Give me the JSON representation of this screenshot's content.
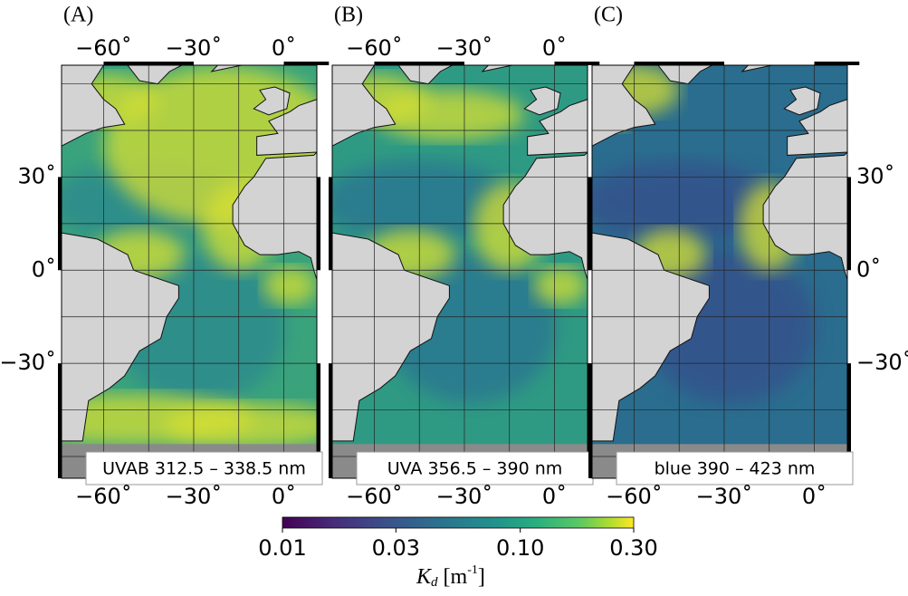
{
  "panels": [
    {
      "label": "(A)",
      "band": "UVAB 312.5 – 338.5 nm"
    },
    {
      "label": "(B)",
      "band": "UVA 356.5 – 390 nm"
    },
    {
      "label": "(C)",
      "band": "blue 390 – 423 nm"
    }
  ],
  "lon_ticks": [
    {
      "value": -60,
      "label": "−60˚"
    },
    {
      "value": -30,
      "label": "−30˚"
    },
    {
      "value": 0,
      "label": "0˚"
    }
  ],
  "lat_ticks": [
    {
      "value": 30,
      "label": "30˚"
    },
    {
      "value": 0,
      "label": "0˚"
    },
    {
      "value": -30,
      "label": "−30˚"
    }
  ],
  "colorbar": {
    "scale": "log",
    "lim": [
      0.01,
      0.3
    ],
    "ticks": [
      {
        "value": 0.01,
        "label": "0.01"
      },
      {
        "value": 0.03,
        "label": "0.03"
      },
      {
        "value": 0.1,
        "label": "0.10"
      },
      {
        "value": 0.3,
        "label": "0.30"
      }
    ],
    "label": "K",
    "label_subscript": "d",
    "label_unit": "[m",
    "label_unit_exp": "-1",
    "label_unit_close": "]"
  }
}
